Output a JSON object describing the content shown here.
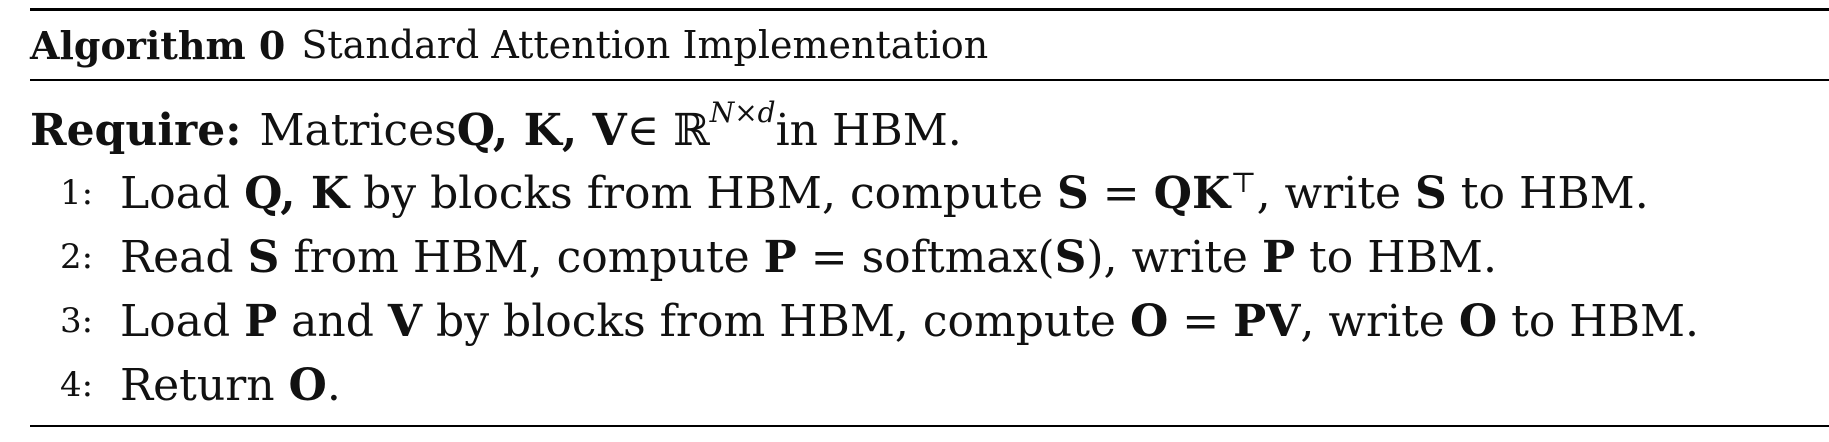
{
  "algorithm": {
    "label": "Algorithm 0",
    "title": "Standard Attention Implementation",
    "require": {
      "label": "Require:",
      "text_prefix": "Matrices ",
      "matrices": "Q, K, V",
      "member": " ∈ ℝ",
      "dims": "N×d",
      "text_suffix": " in HBM."
    },
    "steps": [
      {
        "num": "1:",
        "parts": [
          "Load ",
          "Q, K",
          " by blocks from HBM, compute ",
          "S",
          " = ",
          "QK",
          "⊤",
          ", write ",
          "S",
          " to HBM."
        ]
      },
      {
        "num": "2:",
        "parts": [
          "Read ",
          "S",
          " from HBM, compute ",
          "P",
          " = softmax(",
          "S",
          "), write ",
          "P",
          " to HBM."
        ]
      },
      {
        "num": "3:",
        "parts": [
          "Load ",
          "P",
          " and ",
          "V",
          " by blocks from HBM, compute ",
          "O",
          " = ",
          "PV",
          ", write ",
          "O",
          " to HBM."
        ]
      },
      {
        "num": "4:",
        "parts": [
          "Return ",
          "O",
          "."
        ]
      }
    ]
  }
}
